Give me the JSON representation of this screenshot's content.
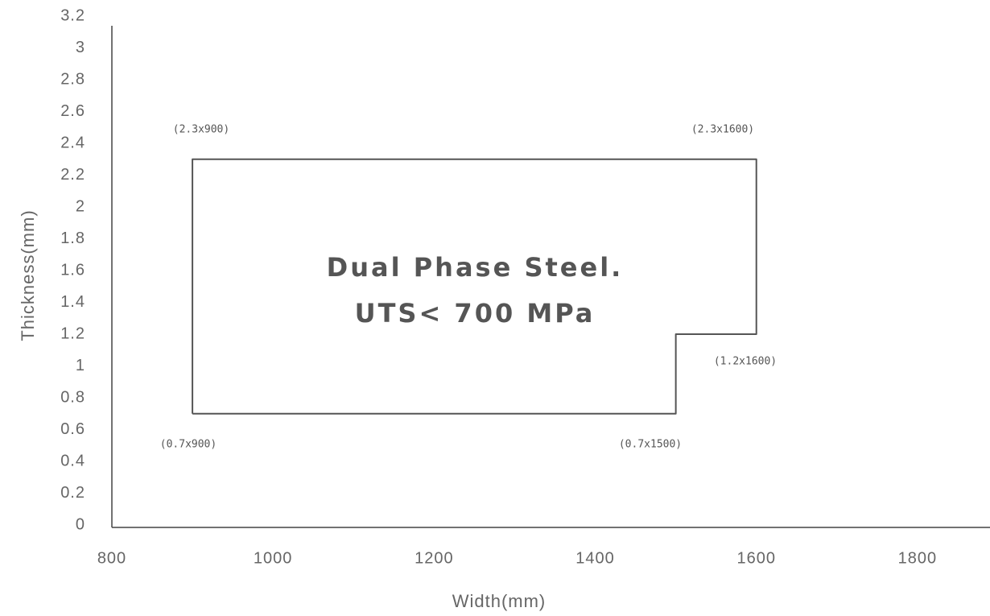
{
  "chart_data": {
    "type": "line",
    "x_label": "Width(mm)",
    "y_label": "Thickness(mm)",
    "annotations": [
      "Dual Phase Steel.",
      "UTS< 700 MPa",
      "(2.3x900)",
      "(2.3x1600)",
      "(1.2x1600)",
      "(0.7x900)",
      "(0.7x1500)"
    ],
    "x": [
      900,
      900,
      1600,
      1600,
      1500,
      1500,
      900
    ],
    "series": [
      {
        "color": "#555555",
        "values": [
          0.7,
          2.3,
          2.3,
          1.2,
          1.2,
          0.7,
          0.7
        ]
      }
    ],
    "xlim": [
      800,
      1890
    ],
    "xticks": [
      800,
      1000,
      1200,
      1400,
      1600,
      1800
    ],
    "ylim": [
      0,
      3.2
    ],
    "yticks": [
      0,
      0.2,
      0.4,
      0.6,
      0.8,
      1,
      1.2,
      1.4,
      1.6,
      1.8,
      2,
      2.2,
      2.4,
      2.6,
      2.8,
      3,
      3.2
    ],
    "grid": false
  }
}
